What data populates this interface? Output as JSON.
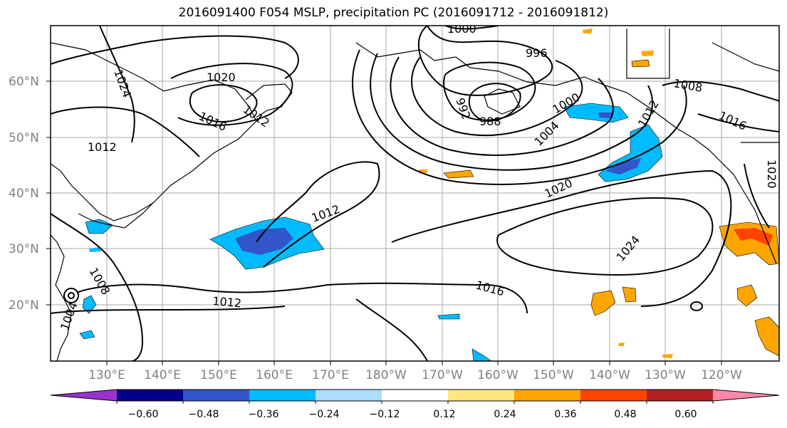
{
  "title": "2016091400 F054 MSLP, precipitation PC (2016091712 - 2016091812)",
  "map": {
    "lon_labels": [
      "130°E",
      "140°E",
      "150°E",
      "160°E",
      "170°E",
      "180°W",
      "170°W",
      "160°W",
      "150°W",
      "140°W",
      "130°W",
      "120°W"
    ],
    "lat_labels": [
      "60°N",
      "50°N",
      "40°N",
      "30°N",
      "20°N"
    ],
    "isobar_labels": [
      "1000",
      "996",
      "1024",
      "1020",
      "1012",
      "1016",
      "992",
      "988",
      "1000",
      "1004",
      "1008",
      "1016",
      "1012",
      "1020",
      "1012",
      "1024",
      "1008",
      "1004",
      "1016",
      "1012",
      "1020",
      "1012"
    ]
  },
  "colorbar": {
    "colors": [
      "#9933cc",
      "#000088",
      "#3355cc",
      "#00bbff",
      "#aaddff",
      "#ffffff",
      "#ffe680",
      "#ffa500",
      "#ff4400",
      "#b22222",
      "#ff88aa"
    ],
    "ticks": [
      "−0.60",
      "−0.48",
      "−0.36",
      "−0.24",
      "−0.12",
      "0.12",
      "0.24",
      "0.36",
      "0.48",
      "0.60"
    ]
  }
}
